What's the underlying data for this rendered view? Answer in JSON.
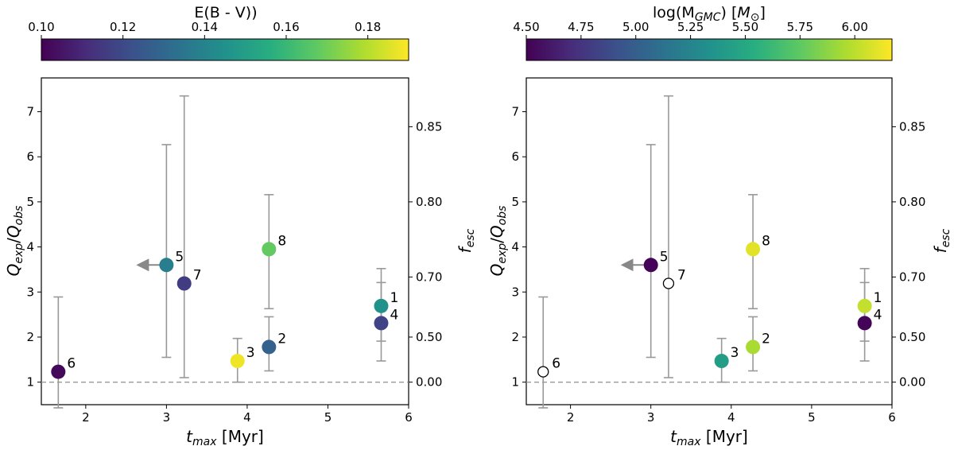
{
  "chart_data": [
    {
      "type": "scatter",
      "panel": "left",
      "xlabel": "t_max [Myr]",
      "ylabel": "Q_exp/Q_obs",
      "y2label": "f_esc",
      "xlim": [
        1.45,
        6.0
      ],
      "ylim": [
        0.5,
        7.75
      ],
      "xticks": [
        2,
        3,
        4,
        5,
        6
      ],
      "yticks": [
        1,
        2,
        3,
        4,
        5,
        6,
        7
      ],
      "y2ticks": [
        {
          "label": "0.00",
          "q": 1.0
        },
        {
          "label": "0.50",
          "q": 2.0
        },
        {
          "label": "0.70",
          "q": 3.333
        },
        {
          "label": "0.80",
          "q": 5.0
        },
        {
          "label": "0.85",
          "q": 6.667
        }
      ],
      "reference_line": 1.0,
      "colorbar": {
        "label": "E(B - V))",
        "min": 0.1,
        "max": 0.19,
        "ticks": [
          "0.10",
          "0.12",
          "0.14",
          "0.16",
          "0.18"
        ],
        "tick_values": [
          0.1,
          0.12,
          0.14,
          0.16,
          0.18
        ]
      },
      "points": [
        {
          "label": "1",
          "x": 5.66,
          "y": 2.69,
          "err_low": 1.22,
          "err_high": 0.83,
          "c": 0.145,
          "open": false,
          "upper_limit": false
        },
        {
          "label": "2",
          "x": 4.27,
          "y": 1.78,
          "err_low": 0.53,
          "err_high": 0.67,
          "c": 0.128,
          "open": false,
          "upper_limit": false
        },
        {
          "label": "3",
          "x": 3.88,
          "y": 1.47,
          "err_low": 0.47,
          "err_high": 0.5,
          "c": 0.188,
          "open": false,
          "upper_limit": false
        },
        {
          "label": "4",
          "x": 5.66,
          "y": 2.31,
          "err_low": 0.4,
          "err_high": 0.9,
          "c": 0.118,
          "open": false,
          "upper_limit": false
        },
        {
          "label": "5",
          "x": 3.0,
          "y": 3.6,
          "err_low": 2.05,
          "err_high": 2.67,
          "c": 0.138,
          "open": false,
          "upper_limit": true
        },
        {
          "label": "6",
          "x": 1.66,
          "y": 1.23,
          "err_low": 0.8,
          "err_high": 1.66,
          "c": 0.102,
          "open": false,
          "upper_limit": false
        },
        {
          "label": "7",
          "x": 3.22,
          "y": 3.19,
          "err_low": 2.09,
          "err_high": 4.16,
          "c": 0.116,
          "open": false,
          "upper_limit": false
        },
        {
          "label": "8",
          "x": 4.27,
          "y": 3.95,
          "err_low": 1.32,
          "err_high": 1.21,
          "c": 0.168,
          "open": false,
          "upper_limit": false
        }
      ]
    },
    {
      "type": "scatter",
      "panel": "right",
      "xlabel": "t_max [Myr]",
      "ylabel": "Q_exp/Q_obs",
      "y2label": "f_esc",
      "xlim": [
        1.45,
        6.0
      ],
      "ylim": [
        0.5,
        7.75
      ],
      "xticks": [
        2,
        3,
        4,
        5,
        6
      ],
      "yticks": [
        1,
        2,
        3,
        4,
        5,
        6,
        7
      ],
      "y2ticks": [
        {
          "label": "0.00",
          "q": 1.0
        },
        {
          "label": "0.50",
          "q": 2.0
        },
        {
          "label": "0.70",
          "q": 3.333
        },
        {
          "label": "0.80",
          "q": 5.0
        },
        {
          "label": "0.85",
          "q": 6.667
        }
      ],
      "reference_line": 1.0,
      "colorbar": {
        "label": "log(M_GMC) [M_sun]",
        "min": 4.5,
        "max": 6.17,
        "ticks": [
          "4.50",
          "4.75",
          "5.00",
          "5.25",
          "5.50",
          "5.75",
          "6.00"
        ],
        "tick_values": [
          4.5,
          4.75,
          5.0,
          5.25,
          5.5,
          5.75,
          6.0
        ]
      },
      "points": [
        {
          "label": "1",
          "x": 5.66,
          "y": 2.69,
          "err_low": 1.22,
          "err_high": 0.83,
          "c": 6.02,
          "open": false,
          "upper_limit": false
        },
        {
          "label": "2",
          "x": 4.27,
          "y": 1.78,
          "err_low": 0.53,
          "err_high": 0.67,
          "c": 5.95,
          "open": false,
          "upper_limit": false
        },
        {
          "label": "3",
          "x": 3.88,
          "y": 1.47,
          "err_low": 0.47,
          "err_high": 0.5,
          "c": 5.42,
          "open": false,
          "upper_limit": false
        },
        {
          "label": "4",
          "x": 5.66,
          "y": 2.31,
          "err_low": 0.4,
          "err_high": 0.9,
          "c": 4.52,
          "open": false,
          "upper_limit": false
        },
        {
          "label": "5",
          "x": 3.0,
          "y": 3.6,
          "err_low": 2.05,
          "err_high": 2.67,
          "c": 4.52,
          "open": false,
          "upper_limit": true
        },
        {
          "label": "6",
          "x": 1.66,
          "y": 1.23,
          "err_low": 0.8,
          "err_high": 1.66,
          "c": null,
          "open": true,
          "upper_limit": false
        },
        {
          "label": "7",
          "x": 3.22,
          "y": 3.19,
          "err_low": 2.09,
          "err_high": 4.16,
          "c": null,
          "open": true,
          "upper_limit": false
        },
        {
          "label": "8",
          "x": 4.27,
          "y": 3.95,
          "err_low": 1.32,
          "err_high": 1.21,
          "c": 6.1,
          "open": false,
          "upper_limit": false
        }
      ]
    }
  ]
}
